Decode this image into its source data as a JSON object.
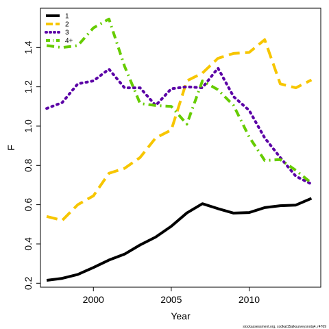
{
  "chart_data": {
    "type": "line",
    "xlabel": "Year",
    "ylabel": "F",
    "xlim": [
      1996.6,
      2014.6
    ],
    "ylim": [
      0.18,
      1.6
    ],
    "x_ticks": [
      2000,
      2005,
      2010
    ],
    "y_ticks": [
      0.2,
      0.4,
      0.6,
      0.8,
      1.0,
      1.2,
      1.4
    ],
    "y_tick_labels": [
      "0.2",
      "0.4",
      "0.6",
      "0.8",
      "1.0",
      "1.2",
      "1.4"
    ],
    "legend_position": "top-left",
    "x": [
      1997,
      1998,
      1999,
      2000,
      2001,
      2002,
      2003,
      2004,
      2005,
      2006,
      2007,
      2008,
      2009,
      2010,
      2011,
      2012,
      2013,
      2014
    ],
    "series": [
      {
        "name": "1",
        "color": "#000000",
        "dash": "solid",
        "values": [
          0.215,
          0.225,
          0.245,
          0.28,
          0.318,
          0.348,
          0.395,
          0.435,
          0.49,
          0.558,
          0.605,
          0.58,
          0.557,
          0.56,
          0.585,
          0.595,
          0.598,
          0.632
        ]
      },
      {
        "name": "2",
        "color": "#F7C600",
        "dash": "long",
        "values": [
          0.54,
          0.52,
          0.6,
          0.645,
          0.76,
          0.785,
          0.84,
          0.94,
          0.98,
          1.23,
          1.27,
          1.345,
          1.37,
          1.375,
          1.44,
          1.215,
          1.195,
          1.235
        ]
      },
      {
        "name": "3",
        "color": "#5B00A6",
        "dash": "dotted",
        "values": [
          1.09,
          1.12,
          1.215,
          1.23,
          1.29,
          1.195,
          1.195,
          1.105,
          1.19,
          1.2,
          1.195,
          1.295,
          1.15,
          1.08,
          0.94,
          0.84,
          0.745,
          0.705
        ]
      },
      {
        "name": "4+",
        "color": "#66CC00",
        "dash": "dashdot",
        "values": [
          1.41,
          1.4,
          1.41,
          1.5,
          1.545,
          1.305,
          1.115,
          1.105,
          1.1,
          1.01,
          1.23,
          1.185,
          1.105,
          0.945,
          0.825,
          0.83,
          0.775,
          0.71
        ]
      }
    ]
  },
  "footer_text": "stockassessment.org, codkat15alksurveysnotq4, r4769"
}
